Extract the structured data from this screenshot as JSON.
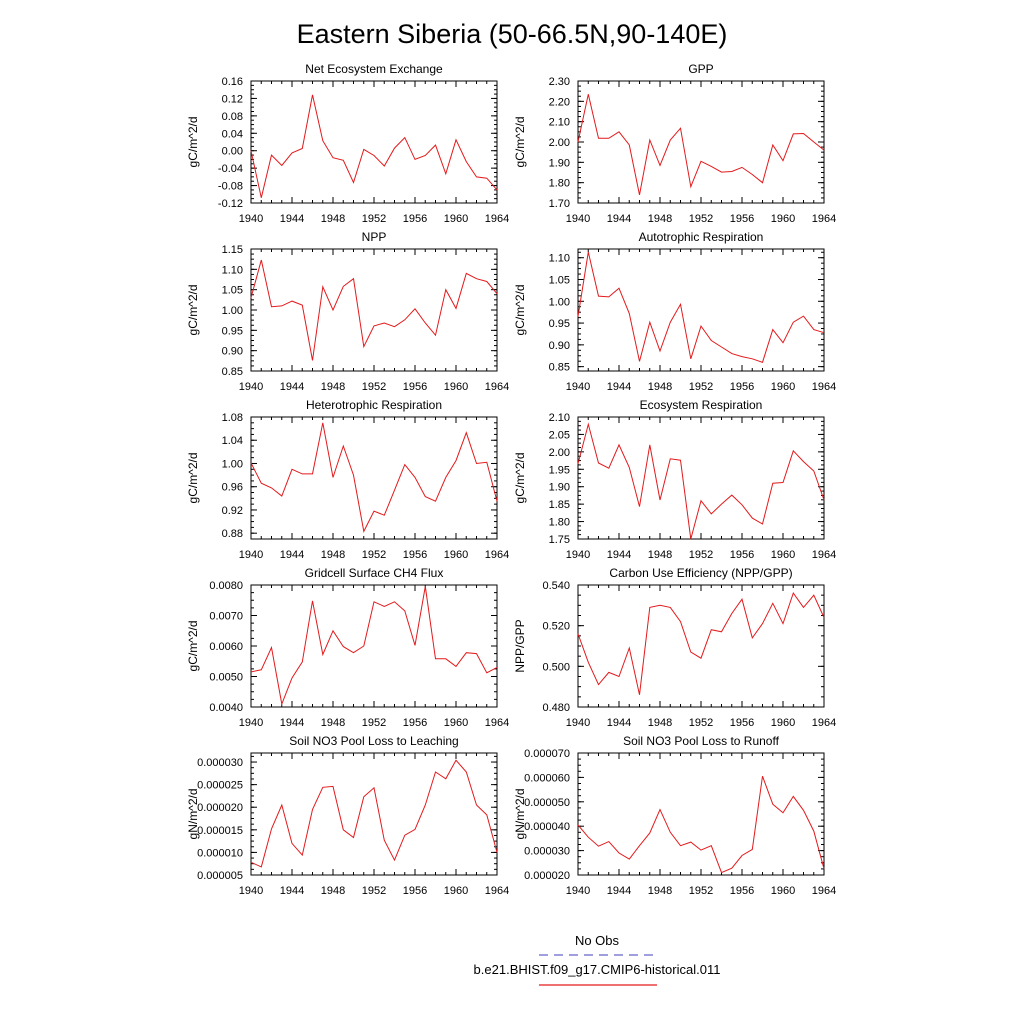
{
  "figure": {
    "title": "Eastern Siberia (50-66.5N,90-140E)",
    "legend": [
      {
        "label": "No Obs",
        "color": "#6666cc",
        "style": "dashed"
      },
      {
        "label": "b.e21.BHIST.f09_g17.CMIP6-historical.011",
        "color": "#e31a1c",
        "style": "solid"
      }
    ]
  },
  "chart_data": [
    {
      "type": "line",
      "title": "Net Ecosystem Exchange",
      "ylabel": "gC/m^2/d",
      "xlim": [
        1940,
        1964
      ],
      "ylim": [
        -0.12,
        0.16
      ],
      "xticks": [
        "1940",
        "1944",
        "1948",
        "1952",
        "1956",
        "1960",
        "1964"
      ],
      "yticks": [
        "-0.12",
        "-0.08",
        "-0.04",
        "0.00",
        "0.04",
        "0.08",
        "0.12",
        "0.16"
      ],
      "x": [
        1940,
        1941,
        1942,
        1943,
        1944,
        1945,
        1946,
        1947,
        1948,
        1949,
        1950,
        1951,
        1952,
        1953,
        1954,
        1955,
        1956,
        1957,
        1958,
        1959,
        1960,
        1961,
        1962,
        1963,
        1964
      ],
      "series": [
        {
          "name": "b.e21.BHIST.f09_g17.CMIP6-historical.011",
          "color": "#e31a1c",
          "values": [
            0.0,
            -0.108,
            -0.01,
            -0.034,
            -0.005,
            0.005,
            0.128,
            0.023,
            -0.016,
            -0.022,
            -0.073,
            0.003,
            -0.011,
            -0.035,
            0.006,
            0.03,
            -0.02,
            -0.011,
            0.013,
            -0.053,
            0.025,
            -0.025,
            -0.06,
            -0.063,
            -0.09
          ]
        }
      ]
    },
    {
      "type": "line",
      "title": "GPP",
      "ylabel": "gC/m^2/d",
      "xlim": [
        1940,
        1964
      ],
      "ylim": [
        1.7,
        2.3
      ],
      "xticks": [
        "1940",
        "1944",
        "1948",
        "1952",
        "1956",
        "1960",
        "1964"
      ],
      "yticks": [
        "1.70",
        "1.80",
        "1.90",
        "2.00",
        "2.10",
        "2.20",
        "2.30"
      ],
      "x": [
        1940,
        1941,
        1942,
        1943,
        1944,
        1945,
        1946,
        1947,
        1948,
        1949,
        1950,
        1951,
        1952,
        1953,
        1954,
        1955,
        1956,
        1957,
        1958,
        1959,
        1960,
        1961,
        1962,
        1963,
        1964
      ],
      "series": [
        {
          "name": "b.e21.BHIST.f09_g17.CMIP6-historical.011",
          "color": "#e31a1c",
          "values": [
            2.0,
            2.235,
            2.018,
            2.018,
            2.05,
            1.985,
            1.74,
            2.01,
            1.885,
            2.01,
            2.068,
            1.78,
            1.905,
            1.88,
            1.852,
            1.855,
            1.875,
            1.84,
            1.8,
            1.985,
            1.908,
            2.04,
            2.042,
            2.0,
            1.96
          ]
        }
      ]
    },
    {
      "type": "line",
      "title": "NPP",
      "ylabel": "gC/m^2/d",
      "xlim": [
        1940,
        1964
      ],
      "ylim": [
        0.85,
        1.15
      ],
      "xticks": [
        "1940",
        "1944",
        "1948",
        "1952",
        "1956",
        "1960",
        "1964"
      ],
      "yticks": [
        "0.85",
        "0.90",
        "0.95",
        "1.00",
        "1.05",
        "1.10",
        "1.15"
      ],
      "x": [
        1940,
        1941,
        1942,
        1943,
        1944,
        1945,
        1946,
        1947,
        1948,
        1949,
        1950,
        1951,
        1952,
        1953,
        1954,
        1955,
        1956,
        1957,
        1958,
        1959,
        1960,
        1961,
        1962,
        1963,
        1964
      ],
      "series": [
        {
          "name": "b.e21.BHIST.f09_g17.CMIP6-historical.011",
          "color": "#e31a1c",
          "values": [
            1.03,
            1.123,
            1.008,
            1.01,
            1.022,
            1.012,
            0.876,
            1.057,
            1.0,
            1.058,
            1.077,
            0.91,
            0.961,
            0.968,
            0.959,
            0.976,
            1.003,
            0.968,
            0.938,
            1.05,
            1.004,
            1.09,
            1.077,
            1.07,
            1.04
          ]
        }
      ]
    },
    {
      "type": "line",
      "title": "Autotrophic Respiration",
      "ylabel": "gC/m^2/d",
      "xlim": [
        1940,
        1964
      ],
      "ylim": [
        0.84,
        1.12
      ],
      "xticks": [
        "1940",
        "1944",
        "1948",
        "1952",
        "1956",
        "1960",
        "1964"
      ],
      "yticks": [
        "0.85",
        "0.90",
        "0.95",
        "1.00",
        "1.05",
        "1.10"
      ],
      "x": [
        1940,
        1941,
        1942,
        1943,
        1944,
        1945,
        1946,
        1947,
        1948,
        1949,
        1950,
        1951,
        1952,
        1953,
        1954,
        1955,
        1956,
        1957,
        1958,
        1959,
        1960,
        1961,
        1962,
        1963,
        1964
      ],
      "series": [
        {
          "name": "b.e21.BHIST.f09_g17.CMIP6-historical.011",
          "color": "#e31a1c",
          "values": [
            0.965,
            1.113,
            1.012,
            1.01,
            1.03,
            0.972,
            0.862,
            0.952,
            0.886,
            0.952,
            0.993,
            0.868,
            0.943,
            0.91,
            0.895,
            0.88,
            0.873,
            0.868,
            0.86,
            0.935,
            0.905,
            0.952,
            0.966,
            0.935,
            0.928
          ]
        }
      ]
    },
    {
      "type": "line",
      "title": "Heterotrophic Respiration",
      "ylabel": "gC/m^2/d",
      "xlim": [
        1940,
        1964
      ],
      "ylim": [
        0.87,
        1.08
      ],
      "xticks": [
        "1940",
        "1944",
        "1948",
        "1952",
        "1956",
        "1960",
        "1964"
      ],
      "yticks": [
        "0.88",
        "0.92",
        "0.96",
        "1.00",
        "1.04",
        "1.08"
      ],
      "x": [
        1940,
        1941,
        1942,
        1943,
        1944,
        1945,
        1946,
        1947,
        1948,
        1949,
        1950,
        1951,
        1952,
        1953,
        1954,
        1955,
        1956,
        1957,
        1958,
        1959,
        1960,
        1961,
        1962,
        1963,
        1964
      ],
      "series": [
        {
          "name": "b.e21.BHIST.f09_g17.CMIP6-historical.011",
          "color": "#e31a1c",
          "values": [
            1.001,
            0.966,
            0.958,
            0.944,
            0.99,
            0.982,
            0.982,
            1.07,
            0.976,
            1.03,
            0.98,
            0.883,
            0.918,
            0.911,
            0.954,
            0.998,
            0.976,
            0.943,
            0.935,
            0.976,
            1.005,
            1.053,
            1.0,
            1.002,
            0.935
          ]
        }
      ]
    },
    {
      "type": "line",
      "title": "Ecosystem Respiration",
      "ylabel": "gC/m^2/d",
      "xlim": [
        1940,
        1964
      ],
      "ylim": [
        1.75,
        2.1
      ],
      "xticks": [
        "1940",
        "1944",
        "1948",
        "1952",
        "1956",
        "1960",
        "1964"
      ],
      "yticks": [
        "1.75",
        "1.80",
        "1.85",
        "1.90",
        "1.95",
        "2.00",
        "2.05",
        "2.10"
      ],
      "x": [
        1940,
        1941,
        1942,
        1943,
        1944,
        1945,
        1946,
        1947,
        1948,
        1949,
        1950,
        1951,
        1952,
        1953,
        1954,
        1955,
        1956,
        1957,
        1958,
        1959,
        1960,
        1961,
        1962,
        1963,
        1964
      ],
      "series": [
        {
          "name": "b.e21.BHIST.f09_g17.CMIP6-historical.011",
          "color": "#e31a1c",
          "values": [
            1.966,
            2.079,
            1.968,
            1.953,
            2.02,
            1.955,
            1.843,
            2.02,
            1.862,
            1.98,
            1.976,
            1.75,
            1.86,
            1.822,
            1.85,
            1.876,
            1.848,
            1.81,
            1.793,
            1.91,
            1.912,
            2.003,
            1.972,
            1.945,
            1.862
          ]
        }
      ]
    },
    {
      "type": "line",
      "title": "Gridcell Surface CH4 Flux",
      "ylabel": "gC/m^2/d",
      "xlim": [
        1940,
        1964
      ],
      "ylim": [
        0.004,
        0.008
      ],
      "xticks": [
        "1940",
        "1944",
        "1948",
        "1952",
        "1956",
        "1960",
        "1964"
      ],
      "yticks": [
        "0.0040",
        "0.0050",
        "0.0060",
        "0.0070",
        "0.0080"
      ],
      "x": [
        1940,
        1941,
        1942,
        1943,
        1944,
        1945,
        1946,
        1947,
        1948,
        1949,
        1950,
        1951,
        1952,
        1953,
        1954,
        1955,
        1956,
        1957,
        1958,
        1959,
        1960,
        1961,
        1962,
        1963,
        1964
      ],
      "series": [
        {
          "name": "b.e21.BHIST.f09_g17.CMIP6-historical.011",
          "color": "#e31a1c",
          "values": [
            0.00515,
            0.00522,
            0.00595,
            0.0041,
            0.00495,
            0.00548,
            0.00748,
            0.00572,
            0.0065,
            0.00598,
            0.00578,
            0.006,
            0.00745,
            0.0073,
            0.00745,
            0.00715,
            0.00602,
            0.00795,
            0.00558,
            0.00558,
            0.00533,
            0.00578,
            0.00575,
            0.00512,
            0.0053
          ]
        }
      ]
    },
    {
      "type": "line",
      "title": "Carbon Use Efficiency (NPP/GPP)",
      "ylabel": "NPP/GPP",
      "xlim": [
        1940,
        1964
      ],
      "ylim": [
        0.48,
        0.54
      ],
      "xticks": [
        "1940",
        "1944",
        "1948",
        "1952",
        "1956",
        "1960",
        "1964"
      ],
      "yticks": [
        "0.480",
        "0.500",
        "0.520",
        "0.540"
      ],
      "x": [
        1940,
        1941,
        1942,
        1943,
        1944,
        1945,
        1946,
        1947,
        1948,
        1949,
        1950,
        1951,
        1952,
        1953,
        1954,
        1955,
        1956,
        1957,
        1958,
        1959,
        1960,
        1961,
        1962,
        1963,
        1964
      ],
      "series": [
        {
          "name": "b.e21.BHIST.f09_g17.CMIP6-historical.011",
          "color": "#e31a1c",
          "values": [
            0.516,
            0.502,
            0.491,
            0.497,
            0.495,
            0.509,
            0.486,
            0.529,
            0.53,
            0.529,
            0.522,
            0.507,
            0.504,
            0.518,
            0.517,
            0.526,
            0.533,
            0.514,
            0.521,
            0.531,
            0.521,
            0.536,
            0.529,
            0.535,
            0.524
          ]
        }
      ]
    },
    {
      "type": "line",
      "title": "Soil NO3 Pool Loss to Leaching",
      "ylabel": "gN/m^2/d",
      "xlim": [
        1940,
        1964
      ],
      "ylim": [
        5e-06,
        3.2e-05
      ],
      "xticks": [
        "1940",
        "1944",
        "1948",
        "1952",
        "1956",
        "1960",
        "1964"
      ],
      "yticks": [
        "0.000005",
        "0.000010",
        "0.000015",
        "0.000020",
        "0.000025",
        "0.000030"
      ],
      "x": [
        1940,
        1941,
        1942,
        1943,
        1944,
        1945,
        1946,
        1947,
        1948,
        1949,
        1950,
        1951,
        1952,
        1953,
        1954,
        1955,
        1956,
        1957,
        1958,
        1959,
        1960,
        1961,
        1962,
        1963,
        1964
      ],
      "series": [
        {
          "name": "b.e21.BHIST.f09_g17.CMIP6-historical.011",
          "color": "#e31a1c",
          "values": [
            7.8e-06,
            6.8e-06,
            1.52e-05,
            2.05e-05,
            1.2e-05,
            9.4e-06,
            1.95e-05,
            2.44e-05,
            2.46e-05,
            1.5e-05,
            1.33e-05,
            2.23e-05,
            2.43e-05,
            1.27e-05,
            8.3e-06,
            1.38e-05,
            1.51e-05,
            2.05e-05,
            2.78e-05,
            2.63e-05,
            3.04e-05,
            2.78e-05,
            2.05e-05,
            1.83e-05,
            1e-05
          ]
        }
      ]
    },
    {
      "type": "line",
      "title": "Soil NO3 Pool Loss to Runoff",
      "ylabel": "gN/m^2/d",
      "xlim": [
        1940,
        1964
      ],
      "ylim": [
        2e-05,
        7e-05
      ],
      "xticks": [
        "1940",
        "1944",
        "1948",
        "1952",
        "1956",
        "1960",
        "1964"
      ],
      "yticks": [
        "0.000020",
        "0.000030",
        "0.000040",
        "0.000050",
        "0.000060",
        "0.000070"
      ],
      "x": [
        1940,
        1941,
        1942,
        1943,
        1944,
        1945,
        1946,
        1947,
        1948,
        1949,
        1950,
        1951,
        1952,
        1953,
        1954,
        1955,
        1956,
        1957,
        1958,
        1959,
        1960,
        1961,
        1962,
        1963,
        1964
      ],
      "series": [
        {
          "name": "b.e21.BHIST.f09_g17.CMIP6-historical.011",
          "color": "#e31a1c",
          "values": [
            4.05e-05,
            3.55e-05,
            3.18e-05,
            3.37e-05,
            2.9e-05,
            2.65e-05,
            3.2e-05,
            3.72e-05,
            4.68e-05,
            3.75e-05,
            3.2e-05,
            3.35e-05,
            3.02e-05,
            3.2e-05,
            2.1e-05,
            2.28e-05,
            2.8e-05,
            3.05e-05,
            6.05e-05,
            4.9e-05,
            4.55e-05,
            5.22e-05,
            4.65e-05,
            3.8e-05,
            2.25e-05
          ]
        }
      ]
    }
  ]
}
